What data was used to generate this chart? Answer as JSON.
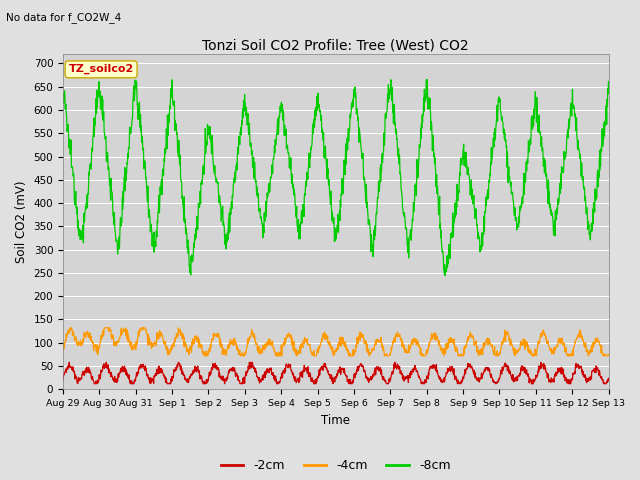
{
  "title": "Tonzi Soil CO2 Profile: Tree (West) CO2",
  "subtitle": "No data for f_CO2W_4",
  "xlabel": "Time",
  "ylabel": "Soil CO2 (mV)",
  "ylim": [
    0,
    720
  ],
  "yticks": [
    0,
    50,
    100,
    150,
    200,
    250,
    300,
    350,
    400,
    450,
    500,
    550,
    600,
    650,
    700
  ],
  "legend_label": "TZ_soilco2",
  "line_labels": [
    "-2cm",
    "-4cm",
    "-8cm"
  ],
  "line_colors": [
    "#cc0000",
    "#ff9900",
    "#00cc00"
  ],
  "background_color": "#e0e0e0",
  "plot_bg_color": "#d4d4d4",
  "figsize": [
    6.4,
    4.8
  ],
  "dpi": 100
}
